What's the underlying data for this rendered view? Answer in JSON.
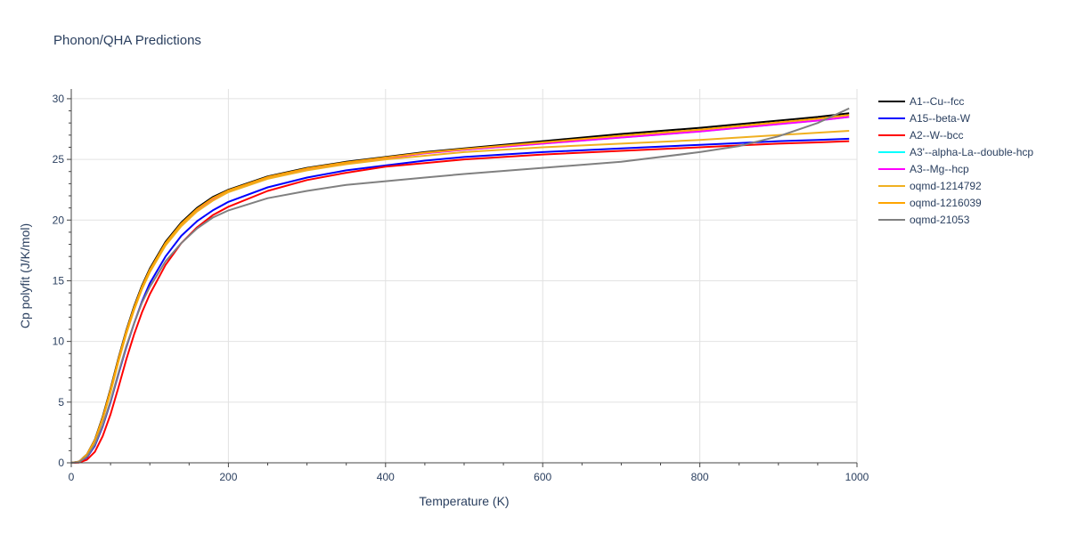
{
  "chart_data": {
    "type": "line",
    "title": "Phonon/QHA Predictions",
    "xlabel": "Temperature (K)",
    "ylabel": "Cp polyfit (J/K/mol)",
    "xlim": [
      0,
      1000
    ],
    "ylim": [
      0,
      30.8
    ],
    "x_ticks": [
      0,
      200,
      400,
      600,
      800,
      1000
    ],
    "y_ticks": [
      0,
      5,
      10,
      15,
      20,
      25,
      30
    ],
    "x_tick_labels": [
      "0",
      "200",
      "400",
      "600",
      "800",
      "1000"
    ],
    "y_tick_labels": [
      "0",
      "5",
      "10",
      "15",
      "20",
      "25",
      "30"
    ],
    "grid": true,
    "legend_position": "right",
    "x": [
      0,
      10,
      20,
      30,
      40,
      50,
      60,
      70,
      80,
      90,
      100,
      120,
      140,
      160,
      180,
      200,
      250,
      300,
      350,
      400,
      450,
      500,
      600,
      700,
      800,
      850,
      900,
      950,
      990
    ],
    "series": [
      {
        "name": "A1--Cu--fcc",
        "color": "#000000",
        "values": [
          0,
          0.1,
          0.7,
          1.9,
          3.8,
          6.1,
          8.6,
          10.9,
          12.9,
          14.6,
          16.0,
          18.2,
          19.8,
          21.0,
          21.9,
          22.5,
          23.6,
          24.3,
          24.8,
          25.2,
          25.6,
          25.9,
          26.5,
          27.1,
          27.6,
          27.9,
          28.2,
          28.5,
          28.8
        ]
      },
      {
        "name": "A15--beta-W",
        "color": "#0000ff",
        "values": [
          0,
          0.05,
          0.45,
          1.4,
          3.0,
          5.0,
          7.3,
          9.5,
          11.5,
          13.3,
          14.8,
          17.0,
          18.7,
          19.9,
          20.8,
          21.5,
          22.7,
          23.5,
          24.1,
          24.5,
          24.9,
          25.2,
          25.6,
          25.9,
          26.2,
          26.35,
          26.5,
          26.6,
          26.7
        ]
      },
      {
        "name": "A2--W--bcc",
        "color": "#ff0000",
        "values": [
          0,
          0.02,
          0.25,
          0.9,
          2.2,
          4.0,
          6.2,
          8.5,
          10.6,
          12.4,
          13.9,
          16.3,
          18.1,
          19.4,
          20.4,
          21.1,
          22.4,
          23.3,
          23.9,
          24.4,
          24.7,
          25.0,
          25.4,
          25.7,
          26.0,
          26.15,
          26.3,
          26.4,
          26.5
        ]
      },
      {
        "name": "A3'--alpha-La--double-hcp",
        "color": "#00ffff",
        "values": [
          0,
          0.08,
          0.65,
          1.8,
          3.6,
          5.9,
          8.4,
          10.7,
          12.7,
          14.4,
          15.8,
          18.0,
          19.6,
          20.8,
          21.7,
          22.4,
          23.5,
          24.2,
          24.7,
          25.1,
          25.5,
          25.8,
          26.3,
          26.8,
          27.3,
          27.6,
          27.9,
          28.2,
          28.5
        ]
      },
      {
        "name": "A3--Mg--hcp",
        "color": "#ff00ff",
        "values": [
          0,
          0.08,
          0.65,
          1.8,
          3.6,
          5.9,
          8.4,
          10.7,
          12.7,
          14.4,
          15.8,
          18.0,
          19.6,
          20.8,
          21.7,
          22.4,
          23.5,
          24.2,
          24.7,
          25.1,
          25.5,
          25.8,
          26.3,
          26.8,
          27.3,
          27.6,
          27.9,
          28.2,
          28.5
        ]
      },
      {
        "name": "oqmd-1214792",
        "color": "#f0b020",
        "values": [
          0,
          0.08,
          0.65,
          1.8,
          3.6,
          5.8,
          8.3,
          10.6,
          12.6,
          14.3,
          15.7,
          17.9,
          19.5,
          20.7,
          21.6,
          22.3,
          23.4,
          24.1,
          24.6,
          25.0,
          25.3,
          25.6,
          26.0,
          26.3,
          26.6,
          26.8,
          27.0,
          27.2,
          27.35
        ]
      },
      {
        "name": "oqmd-1216039",
        "color": "#ffa500",
        "values": [
          0,
          0.09,
          0.68,
          1.85,
          3.7,
          6.0,
          8.5,
          10.8,
          12.8,
          14.5,
          15.9,
          18.1,
          19.7,
          20.9,
          21.8,
          22.45,
          23.55,
          24.25,
          24.75,
          25.15,
          25.55,
          25.85,
          26.4,
          26.95,
          27.45,
          27.75,
          28.05,
          28.35,
          28.65
        ]
      },
      {
        "name": "oqmd-21053",
        "color": "#808080",
        "values": [
          0,
          0.06,
          0.5,
          1.5,
          3.1,
          5.1,
          7.4,
          9.6,
          11.5,
          13.2,
          14.5,
          16.6,
          18.1,
          19.3,
          20.2,
          20.8,
          21.8,
          22.4,
          22.9,
          23.2,
          23.5,
          23.8,
          24.3,
          24.8,
          25.6,
          26.1,
          26.9,
          28.0,
          29.2
        ]
      }
    ]
  }
}
